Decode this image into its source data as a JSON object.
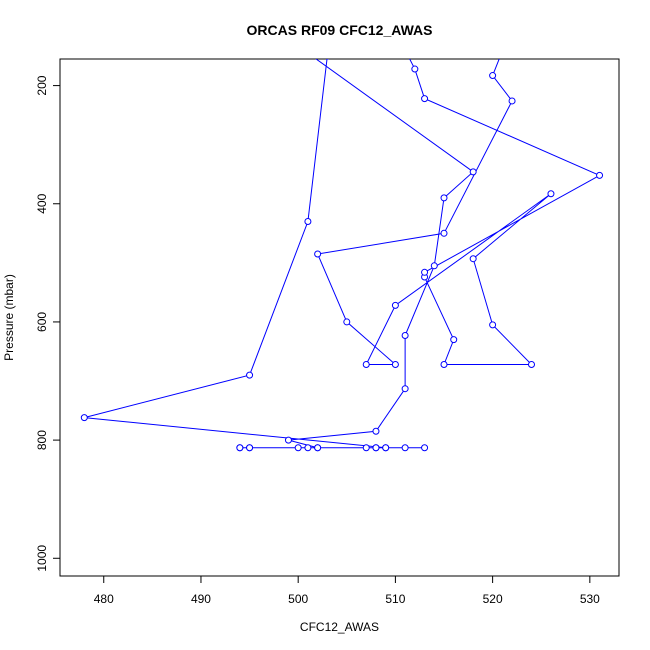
{
  "chart_data": {
    "type": "line",
    "title": "ORCAS RF09 CFC12_AWAS",
    "xlabel": "CFC12_AWAS",
    "ylabel": "Pressure (mbar)",
    "xlim": [
      475.5,
      533
    ],
    "ylim": [
      1030,
      155
    ],
    "y_reversed": true,
    "xticks": [
      480,
      490,
      500,
      510,
      520,
      530
    ],
    "yticks": [
      200,
      400,
      600,
      800,
      1000
    ],
    "grid": false,
    "legend": "none",
    "series_color": "#0000ff",
    "markers": "open-circle",
    "series": [
      {
        "points": [
          [
            504,
            65
          ],
          [
            503,
            110
          ],
          [
            501,
            145
          ],
          [
            518,
            346
          ],
          [
            515,
            390
          ],
          [
            514,
            505
          ],
          [
            511,
            623
          ],
          [
            511,
            713
          ],
          [
            508,
            785
          ],
          [
            499,
            800
          ],
          [
            502,
            813
          ],
          [
            494,
            813
          ],
          [
            495,
            813
          ],
          [
            511,
            813
          ],
          [
            501,
            813
          ],
          [
            494,
            813
          ],
          [
            513,
            813
          ],
          [
            500,
            813
          ],
          [
            507,
            813
          ],
          [
            508,
            813
          ],
          [
            509,
            813
          ],
          [
            495,
            813
          ],
          [
            508,
            813
          ],
          [
            502,
            813
          ],
          [
            509,
            813
          ],
          [
            478,
            762
          ],
          [
            495,
            690
          ],
          [
            501,
            430
          ],
          [
            503,
            150
          ],
          [
            505,
            105
          ],
          [
            509,
            100
          ],
          [
            522,
            100
          ],
          [
            520,
            183
          ],
          [
            522,
            226
          ],
          [
            515,
            450
          ],
          [
            502,
            485
          ],
          [
            505,
            600
          ],
          [
            510,
            672
          ],
          [
            507,
            672
          ],
          [
            510,
            572
          ],
          [
            526,
            383
          ],
          [
            518,
            493
          ],
          [
            520,
            605
          ],
          [
            524,
            672
          ],
          [
            515,
            672
          ],
          [
            516,
            630
          ],
          [
            513,
            524
          ],
          [
            513,
            516
          ],
          [
            531,
            352
          ],
          [
            513,
            222
          ],
          [
            512,
            172
          ],
          [
            511,
            140
          ]
        ]
      }
    ]
  }
}
